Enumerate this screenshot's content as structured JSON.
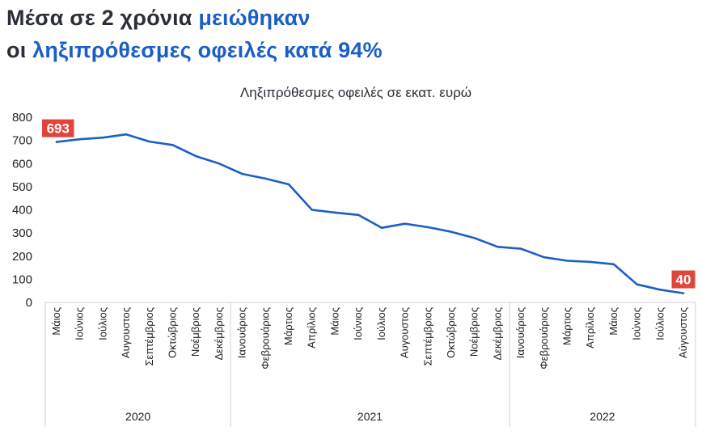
{
  "headline": {
    "line1_plain": "Μέσα σε 2 χρόνια ",
    "line1_accent": "μειώθηκαν",
    "line2_plain": "οι ",
    "line2_accent": "ληξιπρόθεσμες οφειλές κατά 94%"
  },
  "colors": {
    "line": "#1c5fc4",
    "accent_text": "#1c5fc4",
    "label_bg": "#e0443a",
    "axis": "#d0d0d0"
  },
  "chart_data": {
    "type": "line",
    "title": "Ληξιπρόθεσμες οφειλές σε εκατ. ευρώ",
    "xlabel": "",
    "ylabel": "",
    "ylim": [
      0,
      800
    ],
    "yticks": [
      0,
      100,
      200,
      300,
      400,
      500,
      600,
      700,
      800
    ],
    "grid": false,
    "categories": [
      "Μάιος",
      "Ιούνιος",
      "Ιούλιος",
      "Αυγουστος",
      "Σεπτέμβριος",
      "Οκτώβριος",
      "Νοέμβριος",
      "Δεκέμβριος",
      "Ιανουάριος",
      "Φεβρουάριος",
      "Μάρτιος",
      "Απρίλιος",
      "Μάιος",
      "Ιούνιος",
      "Ιούλιος",
      "Αυγουστος",
      "Σεπτέμβριος",
      "Οκτώβριος",
      "Νοέμβριος",
      "Δεκέμβριος",
      "Ιανουάριος",
      "Φεβρουάριος",
      "Μάρτιος",
      "Απρίλιος",
      "Μάιος",
      "Ιούνιος",
      "Ιούλιος",
      "Αύγουστος"
    ],
    "years": [
      {
        "label": "2020",
        "start": 0,
        "end": 7
      },
      {
        "label": "2021",
        "start": 8,
        "end": 19
      },
      {
        "label": "2022",
        "start": 20,
        "end": 27
      }
    ],
    "series": [
      {
        "values": [
          693,
          705,
          712,
          726,
          695,
          680,
          632,
          600,
          555,
          535,
          510,
          400,
          388,
          378,
          322,
          340,
          325,
          305,
          278,
          240,
          232,
          195,
          180,
          175,
          165,
          78,
          55,
          40
        ]
      }
    ],
    "data_labels": [
      {
        "index": 0,
        "text": "693"
      },
      {
        "index": 27,
        "text": "40"
      }
    ]
  }
}
